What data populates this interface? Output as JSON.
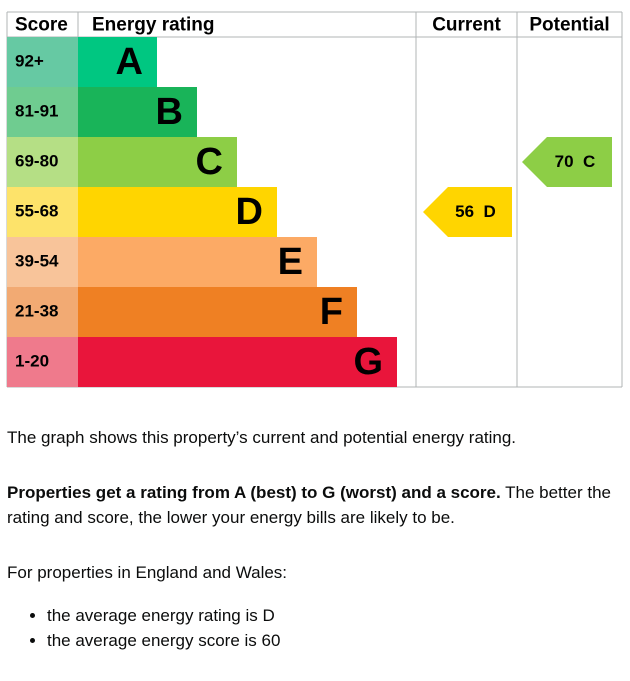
{
  "graph": {
    "headers": {
      "score": "Score",
      "rating": "Energy rating",
      "current": "Current",
      "potential": "Potential"
    },
    "bands": [
      {
        "score": "92+",
        "rating": "A",
        "color": "#00c781",
        "score_color": "#66c9a3"
      },
      {
        "score": "81-91",
        "rating": "B",
        "color": "#19b459",
        "score_color": "#6fcc90"
      },
      {
        "score": "69-80",
        "rating": "C",
        "color": "#8dce46",
        "score_color": "#b5df85"
      },
      {
        "score": "55-68",
        "rating": "D",
        "color": "#ffd500",
        "score_color": "#fde36a"
      },
      {
        "score": "39-54",
        "rating": "E",
        "color": "#fcaa65",
        "score_color": "#f8c49a"
      },
      {
        "score": "21-38",
        "rating": "F",
        "color": "#ef8023",
        "score_color": "#f2aa73"
      },
      {
        "score": "1-20",
        "rating": "G",
        "color": "#e9153b",
        "score_color": "#ef7a8c"
      }
    ],
    "current": {
      "score": 56,
      "rating": "D"
    },
    "potential": {
      "score": 70,
      "rating": "C"
    }
  },
  "text": {
    "intro": "The graph shows this property’s current and potential energy rating.",
    "bold": "Properties get a rating from A (best) to G (worst) and a score.",
    "rest": " The better the rating and score, the lower your energy bills are likely to be.",
    "region": "For properties in England and Wales:",
    "bullets": [
      "the average energy rating is D",
      "the average energy score is 60"
    ]
  }
}
